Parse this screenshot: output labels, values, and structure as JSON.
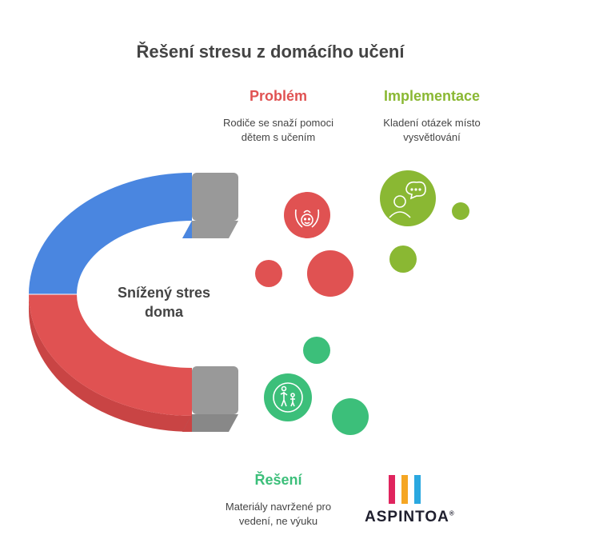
{
  "title": "Řešení stresu z domácího učení",
  "center": {
    "line1": "Snížený stres",
    "line2": "doma"
  },
  "problem": {
    "heading": "Problém",
    "desc_line1": "Rodiče se snaží pomoci",
    "desc_line2": "dětem s učením",
    "color": "#e05252"
  },
  "implementation": {
    "heading": "Implementace",
    "desc_line1": "Kladení otázek místo",
    "desc_line2": "vysvětlování",
    "color": "#8ab833"
  },
  "solution": {
    "heading": "Řešení",
    "desc_line1": "Materiály navržené pro",
    "desc_line2": "vedení, ne výuku",
    "color": "#3cbf7a"
  },
  "magnet": {
    "top_color": "#4a86e0",
    "bottom_color": "#e05252",
    "tip_color": "#999999"
  },
  "icons": {
    "problem": "caring-hands-baby-icon",
    "implementation": "thinking-person-icon",
    "solution": "parent-child-icon"
  },
  "logo": {
    "text": "ASPINTOA",
    "mark": "®",
    "bar_colors": [
      "#e0245e",
      "#f5a623",
      "#2aa8e0"
    ]
  }
}
